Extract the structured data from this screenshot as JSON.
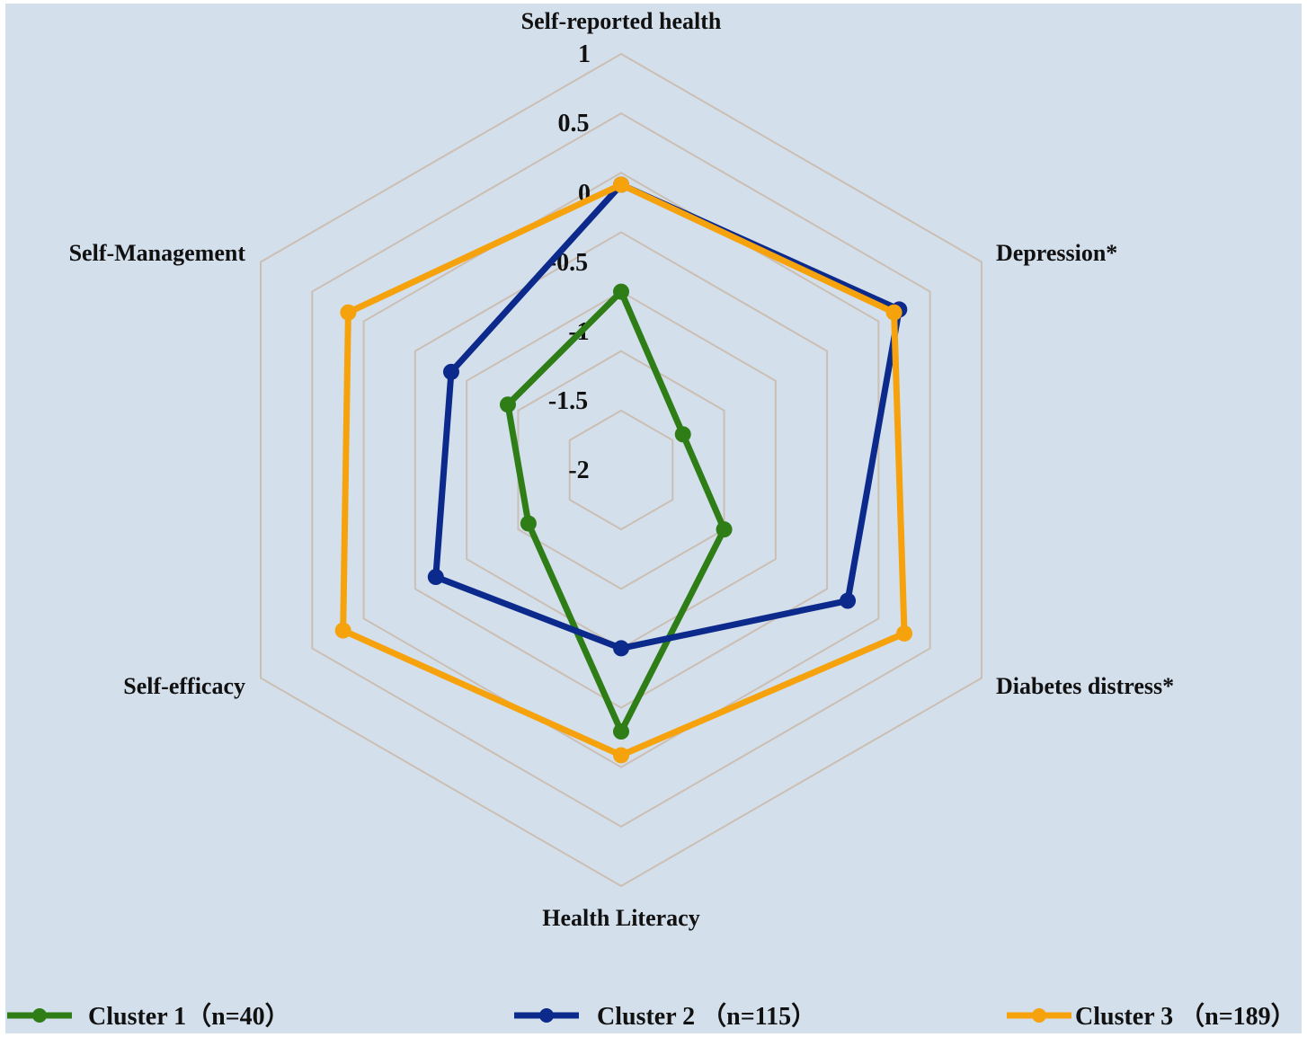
{
  "chart_data": {
    "type": "radar",
    "axes": [
      "Self-reported health",
      "Depression*",
      "Diabetes distress*",
      "Health Literacy",
      "Self-efficacy",
      "Self-Management"
    ],
    "rlim": [
      -2.5,
      1
    ],
    "ticks": [
      1,
      0.5,
      0,
      -0.5,
      -1,
      -1.5,
      -2
    ],
    "tick_labels": [
      "1",
      "0.5",
      "0",
      "-0.5",
      "-1",
      "-1.5",
      "-2"
    ],
    "grid": true,
    "legend_position": "bottom",
    "series": [
      {
        "name": "Cluster 1（n=40）",
        "color": "#2e7d16",
        "values": [
          -1.0,
          -1.9,
          -1.5,
          -0.3,
          -1.6,
          -1.4
        ]
      },
      {
        "name": "Cluster 2 （n=115）",
        "color": "#0b2a8c",
        "values": [
          -0.1,
          0.2,
          -0.3,
          -1.0,
          -0.7,
          -0.85
        ]
      },
      {
        "name": "Cluster 3 （n=189）",
        "color": "#f5a20c",
        "values": [
          -0.1,
          0.15,
          0.25,
          -0.1,
          0.2,
          0.15
        ]
      }
    ]
  }
}
